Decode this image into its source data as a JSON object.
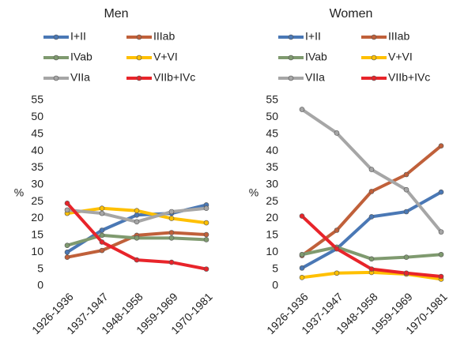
{
  "chart_data": [
    {
      "type": "line",
      "title": "Men",
      "y_label": "%",
      "categories": [
        "1926-1936",
        "1937-1947",
        "1948-1958",
        "1959-1969",
        "1970-1981"
      ],
      "ylim": [
        0,
        55
      ],
      "yticks": [
        0,
        5,
        10,
        15,
        20,
        25,
        30,
        35,
        40,
        45,
        50,
        55
      ],
      "grid": false,
      "series": [
        {
          "name": "I+II",
          "color": "#4a78b5",
          "values": [
            10,
            16.5,
            21,
            21.5,
            24
          ]
        },
        {
          "name": "IIIab",
          "color": "#c0603a",
          "values": [
            8.5,
            10.5,
            15,
            15.8,
            15.2
          ]
        },
        {
          "name": "IVab",
          "color": "#7f9a6f",
          "values": [
            12,
            15,
            14.2,
            14.2,
            13.7
          ]
        },
        {
          "name": "V+VI",
          "color": "#ffc000",
          "values": [
            21.5,
            23,
            22.3,
            20,
            18.7
          ]
        },
        {
          "name": "VIIa",
          "color": "#a6a6a6",
          "values": [
            22.5,
            21.5,
            19,
            22,
            23
          ]
        },
        {
          "name": "VIIb+IVc",
          "color": "#e8242a",
          "values": [
            24.5,
            13,
            7.7,
            7,
            5
          ]
        }
      ]
    },
    {
      "type": "line",
      "title": "Women",
      "y_label": "%",
      "categories": [
        "1926-1936",
        "1937-1947",
        "1948-1958",
        "1959-1969",
        "1970-1981"
      ],
      "ylim": [
        0,
        55
      ],
      "yticks": [
        0,
        5,
        10,
        15,
        20,
        25,
        30,
        35,
        40,
        45,
        50,
        55
      ],
      "grid": false,
      "series": [
        {
          "name": "I+II",
          "color": "#4a78b5",
          "values": [
            5.3,
            11,
            20.5,
            22,
            27.8
          ]
        },
        {
          "name": "IIIab",
          "color": "#c0603a",
          "values": [
            9,
            16.5,
            28,
            33,
            41.5
          ]
        },
        {
          "name": "IVab",
          "color": "#7f9a6f",
          "values": [
            9.3,
            11.5,
            8,
            8.5,
            9.3
          ]
        },
        {
          "name": "V+VI",
          "color": "#ffc000",
          "values": [
            2.5,
            3.8,
            4,
            3.5,
            2
          ]
        },
        {
          "name": "VIIa",
          "color": "#a6a6a6",
          "values": [
            52.3,
            45.3,
            34.5,
            28.5,
            16
          ]
        },
        {
          "name": "VIIb+IVc",
          "color": "#e8242a",
          "values": [
            20.7,
            11,
            5,
            3.8,
            2.8
          ]
        }
      ]
    }
  ]
}
